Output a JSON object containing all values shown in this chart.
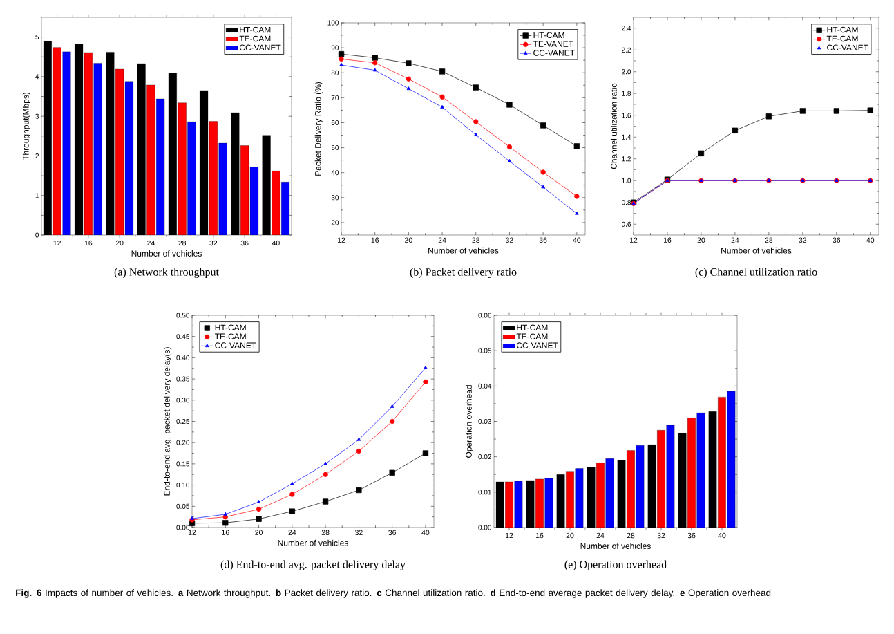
{
  "chart_data": [
    {
      "type": "bar",
      "title": "(a) Network throughput",
      "xlabel": "Number of vehicles",
      "ylabel": "Throughput(Mbps)",
      "categories": [
        "12",
        "16",
        "20",
        "24",
        "28",
        "32",
        "36",
        "40"
      ],
      "ylim": [
        0,
        5.5
      ],
      "yticks": [
        0,
        1,
        2,
        3,
        4,
        5
      ],
      "legend": "top right",
      "series": [
        {
          "name": "HT-CAM",
          "color": "#000000",
          "values": [
            4.9,
            4.82,
            4.62,
            4.33,
            4.09,
            3.65,
            3.09,
            2.52
          ]
        },
        {
          "name": "TE-CAM",
          "color": "#ff0000",
          "values": [
            4.74,
            4.61,
            4.19,
            3.79,
            3.34,
            2.87,
            2.26,
            1.62
          ]
        },
        {
          "name": "CC-VANET",
          "color": "#0000ff",
          "values": [
            4.63,
            4.34,
            3.88,
            3.44,
            2.86,
            2.32,
            1.72,
            1.34
          ]
        }
      ]
    },
    {
      "type": "line",
      "title": "(b) Packet delivery ratio",
      "xlabel": "Number of vehicles",
      "ylabel": "Packet Delivery Ratio (%)",
      "x": [
        12,
        16,
        20,
        24,
        28,
        32,
        36,
        40
      ],
      "xlim": [
        12,
        41
      ],
      "xticks": [
        12,
        16,
        20,
        24,
        28,
        32,
        36,
        40
      ],
      "ylim": [
        15,
        100
      ],
      "yticks": [
        20,
        30,
        40,
        50,
        60,
        70,
        80,
        90,
        100
      ],
      "legend": "top right",
      "series": [
        {
          "name": "HT-CAM",
          "color": "#000000",
          "marker": "square",
          "values": [
            87.5,
            86,
            83.8,
            80.5,
            74.1,
            67.2,
            58.9,
            50.6
          ]
        },
        {
          "name": "TE-VANET",
          "color": "#ff0000",
          "marker": "circle",
          "values": [
            85.5,
            84,
            77.5,
            70.3,
            60.4,
            50.3,
            40.2,
            30.5
          ]
        },
        {
          "name": "CC-VANET",
          "color": "#0000ff",
          "marker": "triangle",
          "values": [
            83.1,
            81,
            73.6,
            66.2,
            55.1,
            44.6,
            34.2,
            23.6
          ]
        }
      ]
    },
    {
      "type": "line",
      "title": "(c) Channel utilization ratio",
      "xlabel": "Number of vehicles",
      "ylabel": "Channel utilization ratio",
      "x": [
        12,
        16,
        20,
        24,
        28,
        32,
        36,
        40
      ],
      "xlim": [
        12,
        41
      ],
      "xticks": [
        12,
        16,
        20,
        24,
        28,
        32,
        36,
        40
      ],
      "ylim": [
        0.5,
        2.5
      ],
      "yticks": [
        0.6,
        0.8,
        {
          "value": 1,
          "label": "1.0"
        },
        1.2,
        1.4,
        1.6,
        1.8,
        {
          "value": 2,
          "label": "2.0"
        },
        2.2,
        2.4
      ],
      "legend": "top right",
      "series": [
        {
          "name": "HT-CAM",
          "color": "#000000",
          "marker": "square",
          "values": [
            0.8,
            1.01,
            1.25,
            1.46,
            1.59,
            1.64,
            1.64,
            1.645
          ]
        },
        {
          "name": "TE-CAM",
          "color": "#ff0000",
          "marker": "circle",
          "values": [
            0.79,
            1,
            1,
            1,
            1,
            1,
            1,
            1
          ]
        },
        {
          "name": "CC-VANET",
          "color": "#0000ff",
          "marker": "triangle",
          "values": [
            0.79,
            1,
            1,
            1,
            1,
            1,
            1,
            1
          ]
        }
      ]
    },
    {
      "type": "line",
      "title": "(d) End-to-end avg. packet delivery delay",
      "xlabel": "Number of vehicles",
      "ylabel": "End-to-end avg. packet delivery delay(s)",
      "x": [
        12,
        16,
        20,
        24,
        28,
        32,
        36,
        40
      ],
      "xlim": [
        12,
        41
      ],
      "xticks": [
        12,
        16,
        20,
        24,
        28,
        32,
        36,
        40
      ],
      "ylim": [
        0,
        0.5
      ],
      "yticks": [
        {
          "value": 0,
          "label": "0.00"
        },
        {
          "value": 0.05,
          "label": "0.05"
        },
        {
          "value": 0.1,
          "label": "0.10"
        },
        {
          "value": 0.15,
          "label": "0.15"
        },
        {
          "value": 0.2,
          "label": "0.20"
        },
        {
          "value": 0.25,
          "label": "0.25"
        },
        {
          "value": 0.3,
          "label": "0.30"
        },
        {
          "value": 0.35,
          "label": "0.35"
        },
        {
          "value": 0.4,
          "label": "0.40"
        },
        {
          "value": 0.45,
          "label": "0.45"
        },
        {
          "value": 0.5,
          "label": "0.50"
        }
      ],
      "legend": "top left",
      "series": [
        {
          "name": "HT-CAM",
          "color": "#000000",
          "marker": "square",
          "values": [
            0.01,
            0.011,
            0.02,
            0.038,
            0.061,
            0.088,
            0.129,
            0.175
          ]
        },
        {
          "name": "TE-CAM",
          "color": "#ff0000",
          "marker": "circle",
          "values": [
            0.018,
            0.025,
            0.043,
            0.078,
            0.125,
            0.18,
            0.25,
            0.343
          ]
        },
        {
          "name": "CC-VANET",
          "color": "#0000ff",
          "marker": "triangle",
          "values": [
            0.021,
            0.031,
            0.06,
            0.103,
            0.15,
            0.207,
            0.285,
            0.376
          ]
        }
      ]
    },
    {
      "type": "bar",
      "title": "(e) Operation overhead",
      "xlabel": "Number of vehicles",
      "ylabel": "Operation overhead",
      "categories": [
        "12",
        "16",
        "20",
        "24",
        "28",
        "32",
        "36",
        "40"
      ],
      "ylim": [
        0,
        0.06
      ],
      "yticks": [
        {
          "value": 0,
          "label": "0.00"
        },
        0.01,
        0.02,
        0.03,
        0.04,
        0.05,
        0.06
      ],
      "legend": "top left",
      "annotations": [
        "**Fig. 6** Impacts of number of vehicles. **a** Network throughput. **b** Packet delivery ratio. **c** Channel utilization ratio. **d** End-to-end average packet delivery delay. **e** Operation overhead"
      ],
      "series": [
        {
          "name": "HT-CAM",
          "color": "#000000",
          "values": [
            0.0129,
            0.0133,
            0.015,
            0.017,
            0.019,
            0.0234,
            0.0267,
            0.0328
          ]
        },
        {
          "name": "TE-CAM",
          "color": "#ff0000",
          "values": [
            0.0129,
            0.0137,
            0.0159,
            0.0183,
            0.0218,
            0.0275,
            0.031,
            0.0369
          ]
        },
        {
          "name": "CC-VANET",
          "color": "#0000ff",
          "values": [
            0.0131,
            0.0139,
            0.0167,
            0.0195,
            0.0232,
            0.0289,
            0.0324,
            0.0385
          ]
        }
      ]
    }
  ]
}
